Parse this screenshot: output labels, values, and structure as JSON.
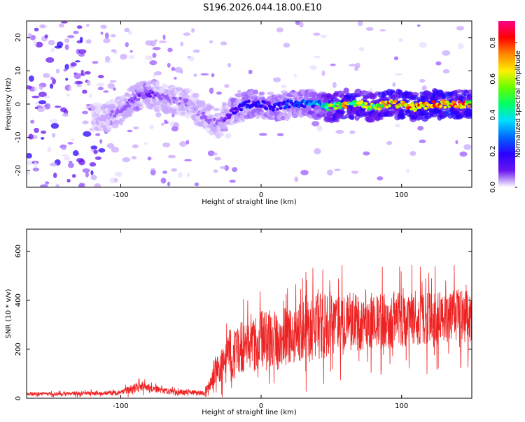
{
  "title": "S196.2026.044.18.00.E10",
  "colors": {
    "trace": "#ee2222",
    "axis": "#000000",
    "colormap": [
      "#ffffff",
      "#e8dcff",
      "#c9a8ff",
      "#9b5cff",
      "#6a16ee",
      "#2a00ff",
      "#0044ff",
      "#00aaff",
      "#00ffdd",
      "#00ff44",
      "#aaff00",
      "#ffee00",
      "#ff8800",
      "#ff0000",
      "#ff0066"
    ]
  },
  "chart_data": [
    {
      "type": "heatmap",
      "name": "spectrogram",
      "xlabel": "Height of straight line (km)",
      "ylabel": "Frequency (Hz)",
      "xlim": [
        -167,
        150
      ],
      "ylim": [
        -25,
        25
      ],
      "x_ticks": [
        -100,
        0,
        100
      ],
      "x_tick_labels": [
        "-100",
        "0",
        "100"
      ],
      "y_ticks": [
        -20,
        -10,
        0,
        10,
        20
      ],
      "y_tick_labels": [
        "-20",
        "-10",
        "0",
        "10",
        "20"
      ],
      "colorbar": {
        "label": "Normalized spectral amplitude",
        "range": [
          0,
          0.92
        ],
        "ticks": [
          0.0,
          0.2,
          0.4,
          0.6,
          0.8
        ],
        "tick_labels": [
          "0.0",
          "0.2",
          "0.4",
          "0.6",
          "0.8"
        ]
      },
      "ridge": {
        "x": [
          -110,
          -100,
          -90,
          -80,
          -70,
          -60,
          -50,
          -40,
          -30,
          -20,
          -10,
          0,
          10,
          20,
          30,
          40,
          50,
          60,
          70,
          80,
          90,
          100,
          110,
          120,
          130,
          140,
          148
        ],
        "freq": [
          -4,
          -2,
          2,
          3,
          2,
          1,
          0,
          -4,
          -6,
          -2,
          0,
          0,
          -1,
          0,
          0,
          0,
          -1,
          0,
          0,
          -1,
          0,
          0,
          -1,
          0,
          0,
          0,
          0
        ],
        "amplitude": [
          0.15,
          0.2,
          0.25,
          0.25,
          0.2,
          0.2,
          0.15,
          0.2,
          0.2,
          0.3,
          0.4,
          0.35,
          0.35,
          0.4,
          0.4,
          0.5,
          0.7,
          0.75,
          0.7,
          0.7,
          0.8,
          0.8,
          0.85,
          0.85,
          0.85,
          0.85,
          0.8
        ]
      }
    },
    {
      "type": "line",
      "name": "snr",
      "xlabel": "Height of straight line (km)",
      "ylabel": "SNR (10 * v/v)",
      "xlim": [
        -167,
        150
      ],
      "ylim": [
        0,
        690
      ],
      "x_ticks": [
        -100,
        0,
        100
      ],
      "x_tick_labels": [
        "-100",
        "0",
        "100"
      ],
      "y_ticks": [
        0,
        200,
        400,
        600
      ],
      "y_tick_labels": [
        "0",
        "200",
        "400",
        "600"
      ],
      "series": [
        {
          "name": "SNR",
          "x": [
            -167,
            -140,
            -120,
            -100,
            -95,
            -90,
            -85,
            -80,
            -70,
            -60,
            -50,
            -40,
            -35,
            -33,
            -30,
            -25,
            -22,
            -20,
            -15,
            -10,
            -5,
            0,
            5,
            10,
            20,
            30,
            35,
            40,
            45,
            50,
            60,
            70,
            80,
            90,
            100,
            110,
            120,
            130,
            140,
            150
          ],
          "mean": [
            18,
            18,
            20,
            22,
            35,
            40,
            45,
            40,
            30,
            25,
            25,
            20,
            80,
            120,
            110,
            160,
            200,
            180,
            200,
            230,
            220,
            240,
            250,
            240,
            260,
            280,
            290,
            300,
            290,
            300,
            310,
            310,
            320,
            310,
            320,
            330,
            320,
            330,
            340,
            330
          ],
          "spread": [
            10,
            10,
            12,
            14,
            22,
            30,
            30,
            25,
            18,
            15,
            15,
            12,
            60,
            90,
            80,
            120,
            160,
            150,
            150,
            160,
            160,
            170,
            170,
            160,
            170,
            180,
            200,
            220,
            190,
            180,
            180,
            170,
            170,
            160,
            170,
            160,
            160,
            150,
            160,
            150
          ]
        }
      ]
    }
  ]
}
